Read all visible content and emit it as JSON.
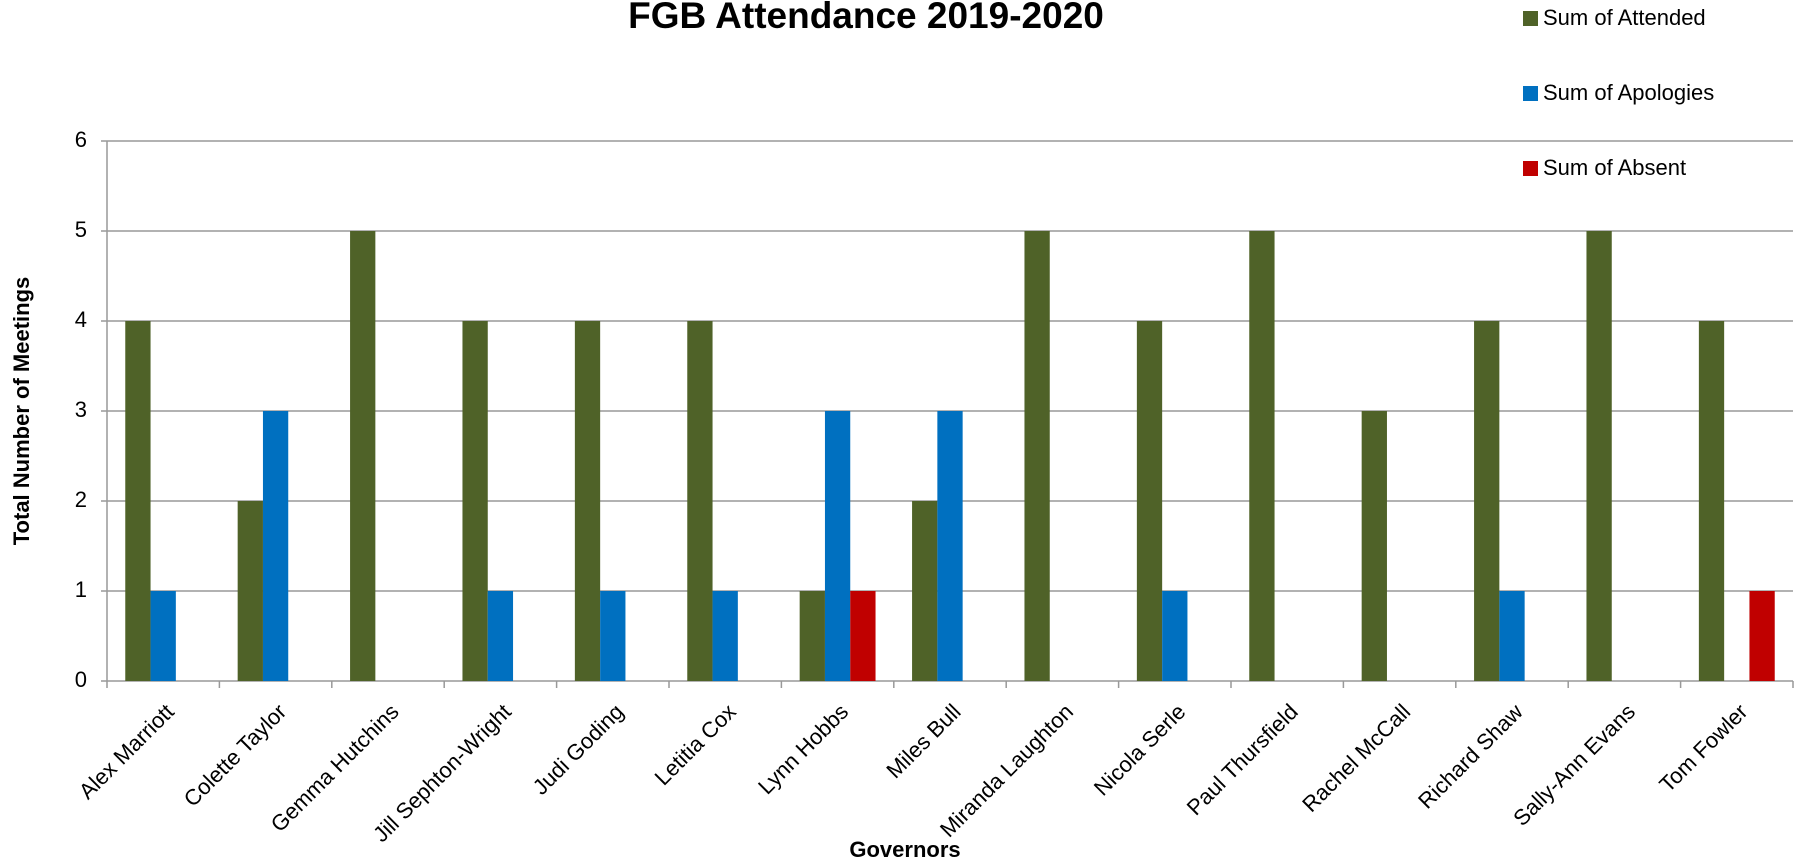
{
  "chart_data": {
    "type": "bar",
    "title": "FGB Attendance 2019-2020",
    "x_label": "Governors",
    "y_label": "Total Number of Meetings",
    "categories": [
      "Alex Marriott",
      "Colette Taylor",
      "Gemma Hutchins",
      "Jill Sephton-Wright",
      "Judi Goding",
      "Letitia Cox",
      "Lynn Hobbs",
      "Miles Bull",
      "Miranda Laughton",
      "Nicola Serle",
      "Paul Thursfield",
      "Rachel McCall",
      "Richard Shaw",
      "Sally-Ann Evans",
      "Tom Fowler"
    ],
    "series": [
      {
        "name": "Sum of Attended",
        "color": "#4f6228",
        "values": [
          4,
          2,
          5,
          4,
          4,
          4,
          1,
          2,
          5,
          4,
          5,
          3,
          4,
          5,
          4
        ]
      },
      {
        "name": "Sum of Apologies",
        "color": "#0070c0",
        "values": [
          1,
          3,
          null,
          1,
          1,
          1,
          3,
          3,
          null,
          1,
          null,
          null,
          1,
          null,
          null
        ]
      },
      {
        "name": "Sum of Absent",
        "color": "#c00000",
        "values": [
          null,
          null,
          null,
          null,
          null,
          null,
          1,
          null,
          null,
          null,
          null,
          null,
          null,
          null,
          1
        ]
      }
    ],
    "ylim": [
      0,
      6
    ],
    "yticks": [
      0,
      1,
      2,
      3,
      4,
      5,
      6
    ],
    "grid": true,
    "legend": "top-right"
  }
}
